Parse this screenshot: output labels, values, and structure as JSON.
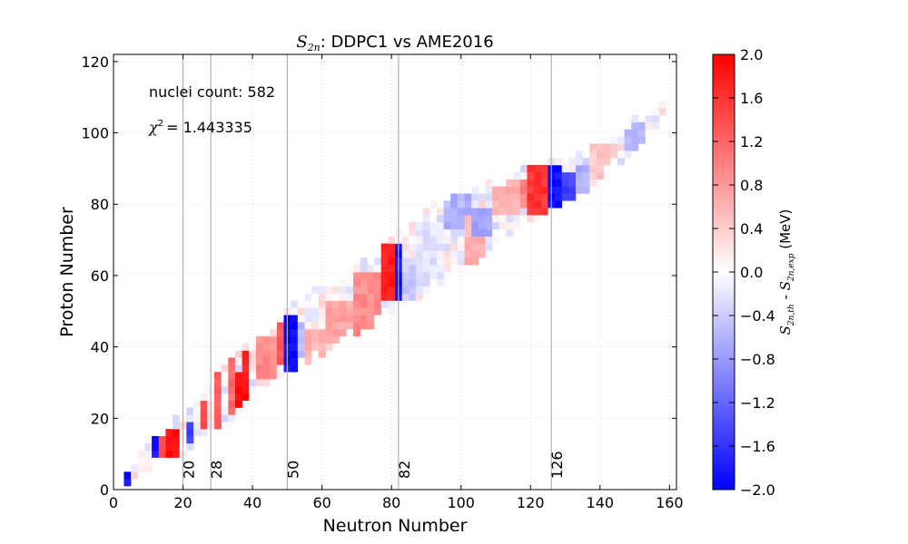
{
  "chart_data": {
    "type": "heatmap",
    "title_math": "S",
    "title_math_sub": "2n",
    "title_text": ":  DDPC1 vs AME2016",
    "xlabel": "Neutron Number",
    "ylabel": "Proton Number",
    "xlim": [
      0,
      162
    ],
    "ylim": [
      0,
      122
    ],
    "xticks": [
      0,
      20,
      40,
      60,
      80,
      100,
      120,
      140,
      160
    ],
    "yticks": [
      0,
      20,
      40,
      60,
      80,
      100,
      120
    ],
    "grid": true,
    "annotations": {
      "count_label": "nuclei count: 582",
      "chi_symbol": "χ",
      "chi_power": "2",
      "chi_value": "= 1.443335"
    },
    "magic_numbers": [
      {
        "N": 20,
        "label": "20"
      },
      {
        "N": 28,
        "label": "28"
      },
      {
        "N": 50,
        "label": "50"
      },
      {
        "N": 82,
        "label": "82"
      },
      {
        "N": 126,
        "label": "126"
      }
    ],
    "colorbar": {
      "min": -2.0,
      "max": 2.0,
      "ticks": [
        "2.0",
        "1.6",
        "1.2",
        "0.8",
        "0.4",
        "0.0",
        "−0.4",
        "−0.8",
        "−1.2",
        "−1.6",
        "−2.0"
      ],
      "label_main": "S",
      "label_sub1": "2n,th",
      "label_mid": " - ",
      "label_sub2": "2n,exp",
      "label_unit": " (MeV)",
      "colors": {
        "low": "#0000ff",
        "mid": "#ffffff",
        "high": "#ff0000"
      }
    },
    "band": [
      {
        "N": 4,
        "zmin": 2,
        "zmax": 4
      },
      {
        "N": 10,
        "zmin": 6,
        "zmax": 12
      },
      {
        "N": 16,
        "zmin": 8,
        "zmax": 18
      },
      {
        "N": 20,
        "zmin": 10,
        "zmax": 20
      },
      {
        "N": 24,
        "zmin": 14,
        "zmax": 24
      },
      {
        "N": 30,
        "zmin": 18,
        "zmax": 32
      },
      {
        "N": 36,
        "zmin": 22,
        "zmax": 38
      },
      {
        "N": 40,
        "zmin": 26,
        "zmax": 40
      },
      {
        "N": 46,
        "zmin": 30,
        "zmax": 44
      },
      {
        "N": 50,
        "zmin": 34,
        "zmax": 50
      },
      {
        "N": 56,
        "zmin": 36,
        "zmax": 54
      },
      {
        "N": 60,
        "zmin": 38,
        "zmax": 56
      },
      {
        "N": 66,
        "zmin": 42,
        "zmax": 58
      },
      {
        "N": 70,
        "zmin": 44,
        "zmax": 62
      },
      {
        "N": 76,
        "zmin": 48,
        "zmax": 66
      },
      {
        "N": 80,
        "zmin": 50,
        "zmax": 70
      },
      {
        "N": 84,
        "zmin": 52,
        "zmax": 72
      },
      {
        "N": 90,
        "zmin": 56,
        "zmax": 78
      },
      {
        "N": 96,
        "zmin": 60,
        "zmax": 82
      },
      {
        "N": 100,
        "zmin": 62,
        "zmax": 82
      },
      {
        "N": 106,
        "zmin": 66,
        "zmax": 84
      },
      {
        "N": 110,
        "zmin": 70,
        "zmax": 86
      },
      {
        "N": 116,
        "zmin": 74,
        "zmax": 88
      },
      {
        "N": 120,
        "zmin": 76,
        "zmax": 90
      },
      {
        "N": 126,
        "zmin": 78,
        "zmax": 92
      },
      {
        "N": 132,
        "zmin": 82,
        "zmax": 92
      },
      {
        "N": 136,
        "zmin": 84,
        "zmax": 94
      },
      {
        "N": 142,
        "zmin": 90,
        "zmax": 98
      },
      {
        "N": 148,
        "zmin": 94,
        "zmax": 102
      },
      {
        "N": 152,
        "zmin": 96,
        "zmax": 104
      },
      {
        "N": 158,
        "zmin": 106,
        "zmax": 108
      }
    ],
    "regions": [
      {
        "n": [
          3,
          6
        ],
        "z": [
          2,
          6
        ],
        "v": -1.9
      },
      {
        "n": [
          5,
          8
        ],
        "z": [
          1,
          4
        ],
        "v": 1.9
      },
      {
        "n": [
          11,
          14
        ],
        "z": [
          10,
          18
        ],
        "v": -1.8
      },
      {
        "n": [
          16,
          20
        ],
        "z": [
          7,
          18
        ],
        "v": 1.9
      },
      {
        "n": [
          14,
          16
        ],
        "z": [
          10,
          16
        ],
        "v": 1.5
      },
      {
        "n": [
          21,
          24
        ],
        "z": [
          14,
          20
        ],
        "v": -1.5
      },
      {
        "n": [
          25,
          28
        ],
        "z": [
          18,
          26
        ],
        "v": 1.4
      },
      {
        "n": [
          29,
          32
        ],
        "z": [
          18,
          36
        ],
        "v": 1.3
      },
      {
        "n": [
          33,
          36
        ],
        "z": [
          22,
          38
        ],
        "v": 1.2
      },
      {
        "n": [
          36,
          40
        ],
        "z": [
          22,
          34
        ],
        "v": 1.9
      },
      {
        "n": [
          38,
          40
        ],
        "z": [
          34,
          39
        ],
        "v": 1.7
      },
      {
        "n": [
          41,
          48
        ],
        "z": [
          32,
          44
        ],
        "v": 0.9
      },
      {
        "n": [
          50,
          53
        ],
        "z": [
          32,
          50
        ],
        "v": -1.9
      },
      {
        "n": [
          48,
          50
        ],
        "z": [
          36,
          48
        ],
        "v": 1.3
      },
      {
        "n": [
          53,
          56
        ],
        "z": [
          36,
          48
        ],
        "v": -0.5
      },
      {
        "n": [
          56,
          62
        ],
        "z": [
          36,
          46
        ],
        "v": 0.6
      },
      {
        "n": [
          62,
          70
        ],
        "z": [
          42,
          54
        ],
        "v": 0.7
      },
      {
        "n": [
          70,
          78
        ],
        "z": [
          44,
          62
        ],
        "v": 0.9
      },
      {
        "n": [
          78,
          82
        ],
        "z": [
          54,
          70
        ],
        "v": 1.8
      },
      {
        "n": [
          82,
          84
        ],
        "z": [
          50,
          70
        ],
        "v": -1.9
      },
      {
        "n": [
          84,
          88
        ],
        "z": [
          52,
          66
        ],
        "v": -0.4
      },
      {
        "n": [
          88,
          96
        ],
        "z": [
          56,
          76
        ],
        "v": -0.2
      },
      {
        "n": [
          96,
          104
        ],
        "z": [
          74,
          84
        ],
        "v": -0.6
      },
      {
        "n": [
          102,
          108
        ],
        "z": [
          64,
          78
        ],
        "v": 0.6
      },
      {
        "n": [
          104,
          110
        ],
        "z": [
          72,
          80
        ],
        "v": -0.7
      },
      {
        "n": [
          110,
          118
        ],
        "z": [
          78,
          88
        ],
        "v": 0.6
      },
      {
        "n": [
          118,
          122
        ],
        "z": [
          80,
          88
        ],
        "v": 1.0
      },
      {
        "n": [
          120,
          126
        ],
        "z": [
          78,
          92
        ],
        "v": 1.6
      },
      {
        "n": [
          126,
          130
        ],
        "z": [
          80,
          92
        ],
        "v": -1.9
      },
      {
        "n": [
          130,
          134
        ],
        "z": [
          82,
          90
        ],
        "v": -1.5
      },
      {
        "n": [
          134,
          138
        ],
        "z": [
          84,
          92
        ],
        "v": -0.6
      },
      {
        "n": [
          138,
          146
        ],
        "z": [
          88,
          98
        ],
        "v": 0.4
      },
      {
        "n": [
          148,
          154
        ],
        "z": [
          96,
          104
        ],
        "v": -0.5
      }
    ]
  }
}
